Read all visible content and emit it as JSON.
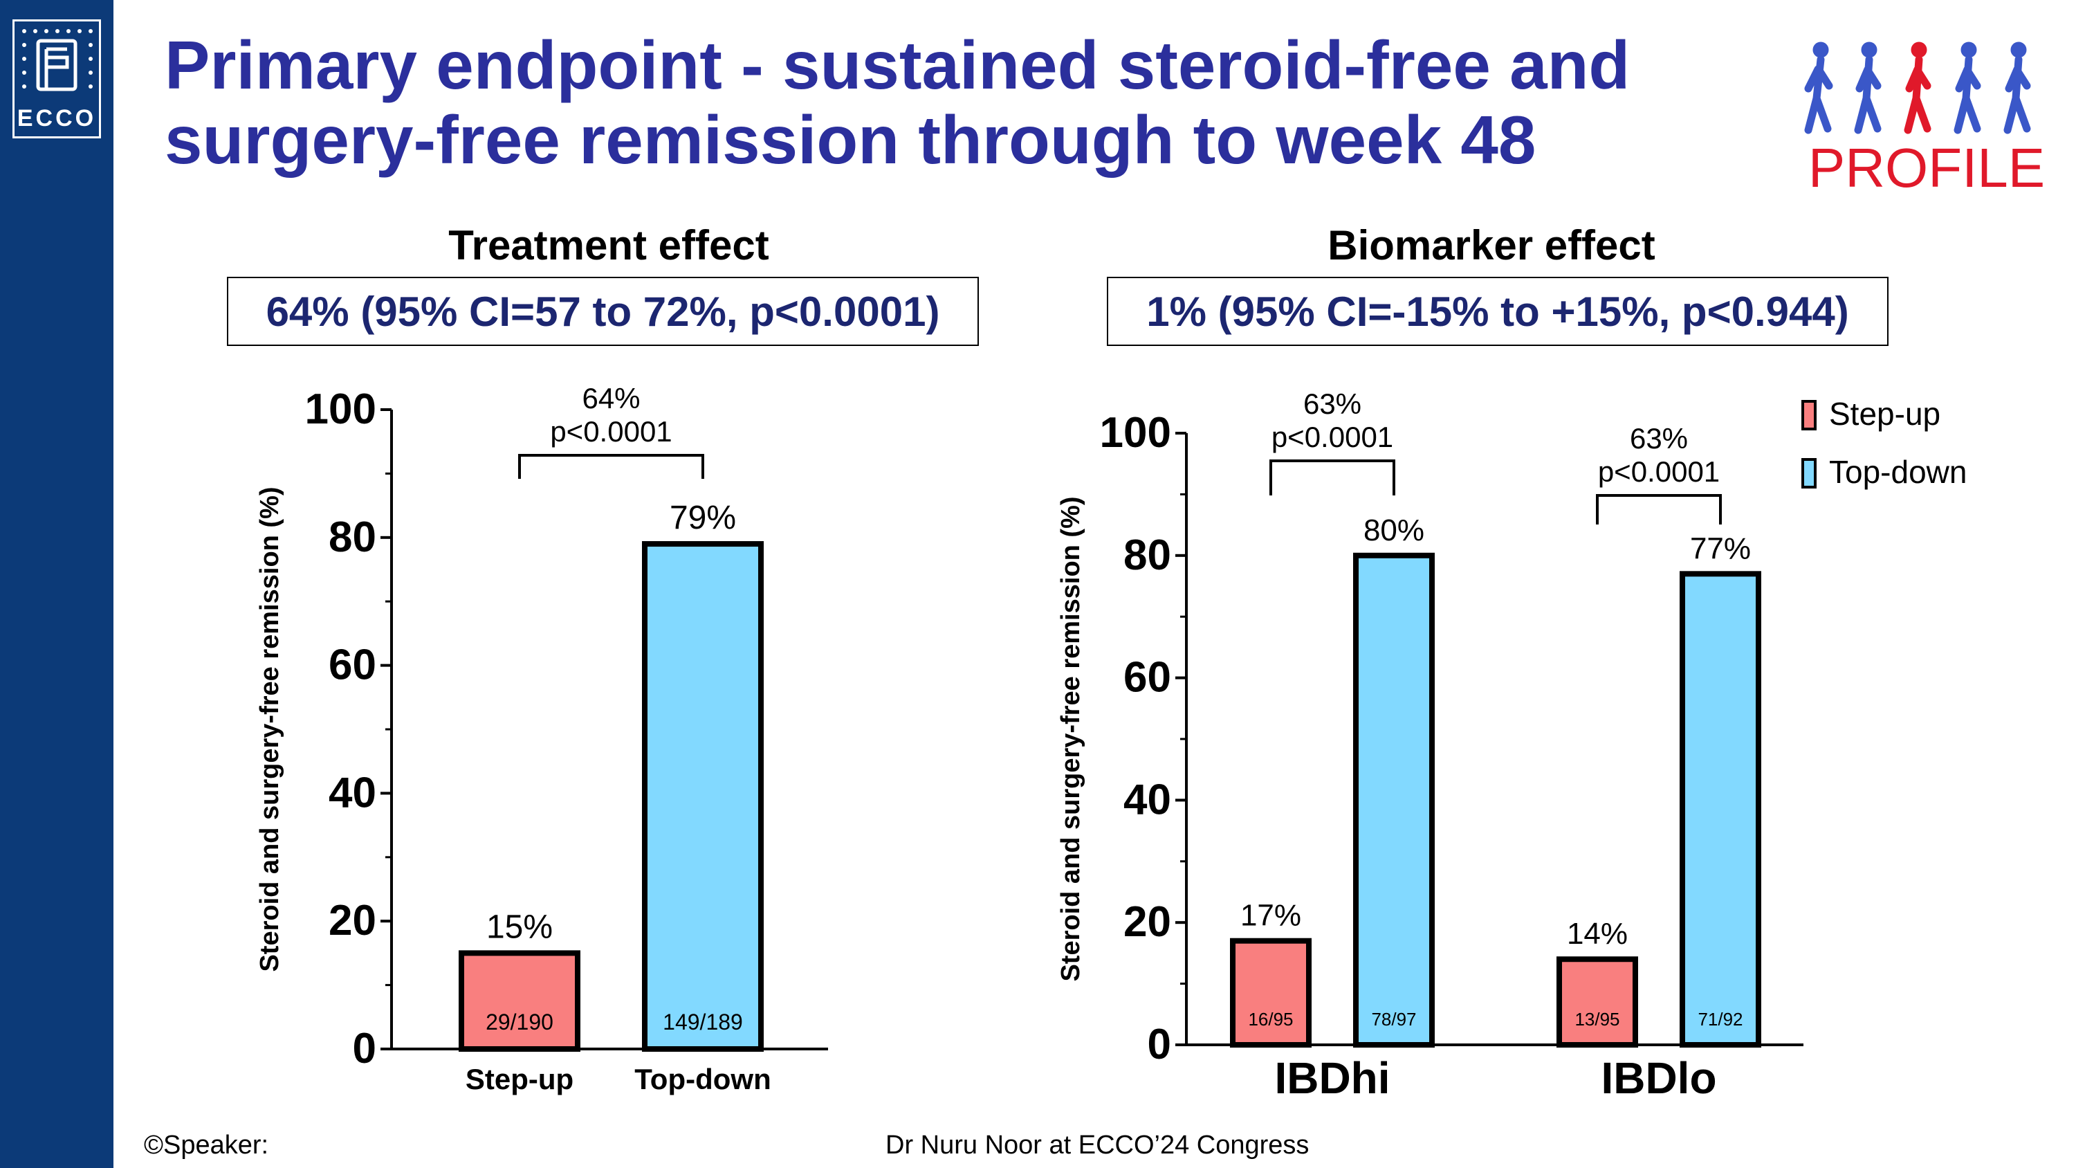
{
  "slide": {
    "title_line1": "Primary endpoint - sustained steroid-free and",
    "title_line2": "surgery-free remission through to week 48",
    "ecco_logo_text": "ECCO",
    "profile_logo_text": "PROFILE",
    "footer_left": "©Speaker:",
    "footer_center": "Dr Nuru Noor  at ECCO’24 Congress"
  },
  "left_panel": {
    "heading": "Treatment effect",
    "effect_text": "64% (95% CI=57 to 72%, p<0.0001)"
  },
  "right_panel": {
    "heading": "Biomarker effect",
    "effect_text": "1% (95% CI=-15% to +15%, p<0.944)"
  },
  "colors": {
    "step_up": "#f97f7f",
    "top_down": "#82d9ff",
    "title": "#2b2f9c",
    "sidebar": "#0c3a78",
    "effect_text": "#1c2670"
  },
  "chart_data": [
    {
      "type": "bar",
      "ylabel": "Steroid and surgery-free remission (%)",
      "ylim": [
        0,
        100
      ],
      "yticks": [
        0,
        20,
        40,
        60,
        80,
        100
      ],
      "categories": [
        "Step-up",
        "Top-down"
      ],
      "values": [
        15,
        79
      ],
      "value_labels": [
        "15%",
        "79%"
      ],
      "counts": [
        "29/190",
        "149/189"
      ],
      "bar_colors": [
        "#f97f7f",
        "#82d9ff"
      ],
      "comparison": {
        "line1": "64%",
        "line2": "p<0.0001"
      }
    },
    {
      "type": "bar",
      "ylabel": "Steroid and surgery-free remission (%)",
      "ylim": [
        0,
        100
      ],
      "yticks": [
        0,
        20,
        40,
        60,
        80,
        100
      ],
      "categories": [
        "IBDhi",
        "IBDlo"
      ],
      "series": [
        {
          "name": "Step-up",
          "color": "#f97f7f",
          "values": [
            17,
            14
          ],
          "value_labels": [
            "17%",
            "14%"
          ],
          "counts": [
            "16/95",
            "13/95"
          ]
        },
        {
          "name": "Top-down",
          "color": "#82d9ff",
          "values": [
            80,
            77
          ],
          "value_labels": [
            "80%",
            "77%"
          ],
          "counts": [
            "78/97",
            "71/92"
          ]
        }
      ],
      "comparisons": [
        {
          "line1": "63%",
          "line2": "p<0.0001"
        },
        {
          "line1": "63%",
          "line2": "p<0.0001"
        }
      ],
      "legend": {
        "position": "top-right",
        "entries": [
          "Step-up",
          "Top-down"
        ]
      }
    }
  ]
}
